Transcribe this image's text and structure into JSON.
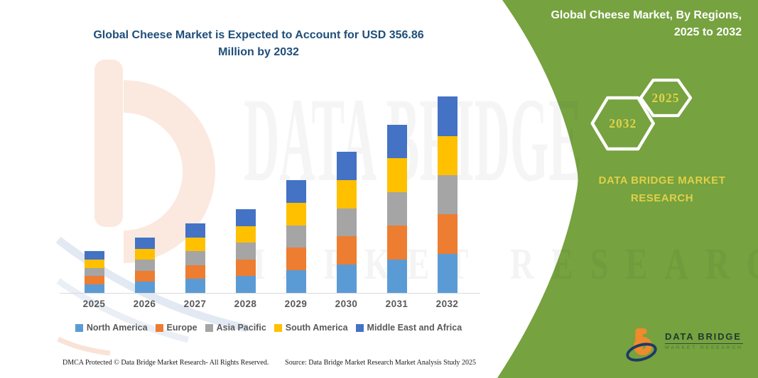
{
  "header": {
    "title_line1": "Global Cheese Market is Expected to Account for USD 356.86",
    "title_line2": "Million by 2032"
  },
  "chart_data": {
    "type": "bar",
    "stacked": true,
    "title": "Global Cheese Market is Expected to Account for USD 356.86 Million by 2032",
    "unit": "USD Million",
    "categories": [
      "2025",
      "2026",
      "2027",
      "2028",
      "2029",
      "2030",
      "2031",
      "2032"
    ],
    "series": [
      {
        "name": "North America",
        "color": "#5B9BD5",
        "values": [
          15.2,
          20.1,
          25.3,
          30.4,
          41.0,
          51.3,
          61.1,
          71.4
        ]
      },
      {
        "name": "Europe",
        "color": "#ED7D31",
        "values": [
          15.2,
          20.1,
          25.3,
          30.4,
          41.0,
          51.3,
          61.1,
          71.4
        ]
      },
      {
        "name": "Asia Pacific",
        "color": "#A5A5A5",
        "values": [
          15.2,
          20.1,
          25.2,
          30.4,
          41.0,
          51.3,
          61.1,
          71.4
        ]
      },
      {
        "name": "South America",
        "color": "#FFC000",
        "values": [
          15.2,
          20.1,
          25.3,
          30.4,
          41.0,
          51.3,
          61.1,
          71.3
        ]
      },
      {
        "name": "Middle East and Africa",
        "color": "#4472C4",
        "values": [
          15.2,
          20.1,
          25.2,
          30.4,
          41.0,
          51.3,
          61.1,
          71.36
        ]
      }
    ],
    "totals": [
      76.0,
      100.5,
      126.3,
      152.0,
      205.0,
      256.5,
      305.5,
      356.86
    ],
    "ylim": [
      0,
      370
    ],
    "grid": false,
    "legend_position": "bottom"
  },
  "green_panel": {
    "title_line1": "Global Cheese Market, By Regions,",
    "title_line2": "2025 to 2032",
    "hex_back_label": "2032",
    "hex_front_label": "2025",
    "brand_text": "DATA BRIDGE MARKET RESEARCH",
    "panel_green": "#76A23F",
    "accent_gold": "#DFD24A"
  },
  "logo": {
    "name": "DATA BRIDGE",
    "tagline": "MARKET RESEARCH"
  },
  "watermark": {
    "primary": "DATA BRIDGE",
    "secondary": "MARKET RESEARCH"
  },
  "footer": {
    "left": "DMCA Protected © Data Bridge Market Research-  All Rights Reserved.",
    "right": "Source: Data Bridge Market Research  Market Analysis Study 2025"
  }
}
